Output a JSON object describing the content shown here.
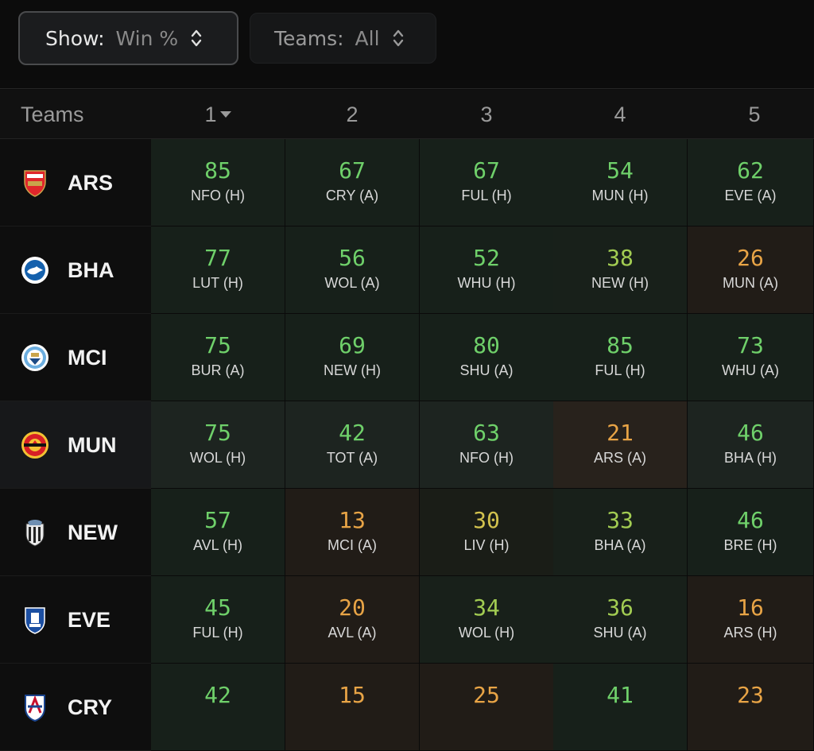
{
  "filters": {
    "show": {
      "label": "Show:",
      "value": "Win %"
    },
    "teams": {
      "label": "Teams:",
      "value": "All"
    }
  },
  "header": {
    "teams_label": "Teams",
    "gameweeks": [
      "1",
      "2",
      "3",
      "4",
      "5"
    ]
  },
  "colors": {
    "green": "#6fd06a",
    "amber": "#e8a446",
    "yellow": "#d2c24e",
    "lime": "#a2cc52"
  },
  "rows": [
    {
      "team": "ARS",
      "logo": "arsenal-crest-icon",
      "highlight": false,
      "fixtures": [
        {
          "value": "85",
          "opp": "NFO (H)",
          "tone": "green"
        },
        {
          "value": "67",
          "opp": "CRY (A)",
          "tone": "green"
        },
        {
          "value": "67",
          "opp": "FUL (H)",
          "tone": "green"
        },
        {
          "value": "54",
          "opp": "MUN (H)",
          "tone": "green"
        },
        {
          "value": "62",
          "opp": "EVE (A)",
          "tone": "green"
        }
      ]
    },
    {
      "team": "BHA",
      "logo": "brighton-crest-icon",
      "highlight": false,
      "fixtures": [
        {
          "value": "77",
          "opp": "LUT (H)",
          "tone": "green"
        },
        {
          "value": "56",
          "opp": "WOL (A)",
          "tone": "green"
        },
        {
          "value": "52",
          "opp": "WHU (H)",
          "tone": "green"
        },
        {
          "value": "38",
          "opp": "NEW (H)",
          "tone": "lime"
        },
        {
          "value": "26",
          "opp": "MUN (A)",
          "tone": "amber"
        }
      ]
    },
    {
      "team": "MCI",
      "logo": "man-city-crest-icon",
      "highlight": false,
      "fixtures": [
        {
          "value": "75",
          "opp": "BUR (A)",
          "tone": "green"
        },
        {
          "value": "69",
          "opp": "NEW (H)",
          "tone": "green"
        },
        {
          "value": "80",
          "opp": "SHU (A)",
          "tone": "green"
        },
        {
          "value": "85",
          "opp": "FUL (H)",
          "tone": "green"
        },
        {
          "value": "73",
          "opp": "WHU (A)",
          "tone": "green"
        }
      ]
    },
    {
      "team": "MUN",
      "logo": "man-united-crest-icon",
      "highlight": true,
      "fixtures": [
        {
          "value": "75",
          "opp": "WOL (H)",
          "tone": "green"
        },
        {
          "value": "42",
          "opp": "TOT (A)",
          "tone": "green"
        },
        {
          "value": "63",
          "opp": "NFO (H)",
          "tone": "green"
        },
        {
          "value": "21",
          "opp": "ARS (A)",
          "tone": "amber"
        },
        {
          "value": "46",
          "opp": "BHA (H)",
          "tone": "green"
        }
      ]
    },
    {
      "team": "NEW",
      "logo": "newcastle-crest-icon",
      "highlight": false,
      "fixtures": [
        {
          "value": "57",
          "opp": "AVL (H)",
          "tone": "green"
        },
        {
          "value": "13",
          "opp": "MCI (A)",
          "tone": "amber"
        },
        {
          "value": "30",
          "opp": "LIV (H)",
          "tone": "yellow"
        },
        {
          "value": "33",
          "opp": "BHA (A)",
          "tone": "lime"
        },
        {
          "value": "46",
          "opp": "BRE (H)",
          "tone": "green"
        }
      ]
    },
    {
      "team": "EVE",
      "logo": "everton-crest-icon",
      "highlight": false,
      "fixtures": [
        {
          "value": "45",
          "opp": "FUL (H)",
          "tone": "green"
        },
        {
          "value": "20",
          "opp": "AVL (A)",
          "tone": "amber"
        },
        {
          "value": "34",
          "opp": "WOL (H)",
          "tone": "lime"
        },
        {
          "value": "36",
          "opp": "SHU (A)",
          "tone": "lime"
        },
        {
          "value": "16",
          "opp": "ARS (H)",
          "tone": "amber"
        }
      ]
    },
    {
      "team": "CRY",
      "logo": "crystal-palace-crest-icon",
      "highlight": false,
      "fixtures": [
        {
          "value": "42",
          "opp": "",
          "tone": "green"
        },
        {
          "value": "15",
          "opp": "",
          "tone": "amber"
        },
        {
          "value": "25",
          "opp": "",
          "tone": "amber"
        },
        {
          "value": "41",
          "opp": "",
          "tone": "green"
        },
        {
          "value": "23",
          "opp": "",
          "tone": "amber"
        }
      ]
    }
  ]
}
